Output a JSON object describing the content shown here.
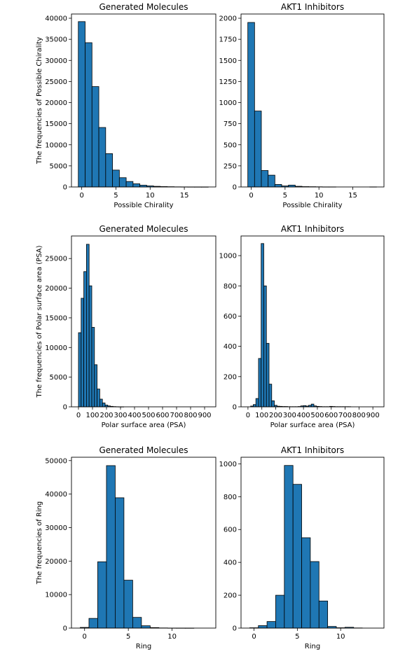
{
  "figure": {
    "bar_color": "#1f77b4",
    "edge_color": "#000000"
  },
  "chart_data": [
    {
      "id": "c1",
      "type": "bar",
      "title": "Generated Molecules",
      "xlabel": "Possible Chirality",
      "ylabel": "The frequencies of Possible Chirality",
      "xlim": [
        -1.5,
        19.6
      ],
      "ylim": [
        0,
        41000
      ],
      "xticks": [
        0,
        5,
        10,
        15
      ],
      "yticks": [
        0,
        5000,
        10000,
        15000,
        20000,
        25000,
        30000,
        35000,
        40000
      ],
      "bin_edges": [
        -0.5,
        0.5,
        1.5,
        2.5,
        3.5,
        4.5,
        5.5,
        6.5,
        7.5,
        8.5,
        9.5,
        10.5,
        11.5,
        12.5,
        13.5,
        14.5,
        15.5,
        16.5,
        17.5,
        18.5
      ],
      "values": [
        39200,
        34200,
        23800,
        14100,
        7900,
        4000,
        2200,
        1300,
        750,
        420,
        250,
        150,
        90,
        60,
        30,
        20,
        10,
        5,
        2
      ]
    },
    {
      "id": "c2",
      "type": "bar",
      "title": "AKT1 Inhibitors",
      "xlabel": "Possible Chirality",
      "ylabel": "",
      "xlim": [
        -1.5,
        19.6
      ],
      "ylim": [
        0,
        2050
      ],
      "xticks": [
        0,
        5,
        10,
        15
      ],
      "yticks": [
        0,
        250,
        500,
        750,
        1000,
        1250,
        1500,
        1750,
        2000
      ],
      "bin_edges": [
        -0.5,
        0.5,
        1.5,
        2.5,
        3.5,
        4.5,
        5.5,
        6.5,
        7.5,
        8.5,
        9.5,
        10.5,
        11.5,
        12.5,
        13.5,
        14.5,
        15.5,
        16.5,
        17.5,
        18.5
      ],
      "values": [
        1950,
        900,
        195,
        140,
        30,
        12,
        22,
        8,
        4,
        3,
        2,
        1,
        1,
        0,
        0,
        0,
        0,
        0,
        1
      ]
    },
    {
      "id": "c3",
      "type": "bar",
      "title": "Generated Molecules",
      "xlabel": "Polar surface area (PSA)",
      "ylabel": "The frequencies of Polar surface area (PSA)",
      "xlim": [
        -50,
        980
      ],
      "ylim": [
        0,
        28800
      ],
      "xticks": [
        0,
        100,
        200,
        300,
        400,
        500,
        600,
        700,
        800,
        900
      ],
      "yticks": [
        0,
        5000,
        10000,
        15000,
        20000,
        25000
      ],
      "bin_edges": [
        0,
        19,
        38,
        57,
        76,
        95,
        114,
        133,
        152,
        171,
        190,
        209,
        228,
        247,
        266,
        285,
        304,
        323
      ],
      "values": [
        12500,
        18300,
        22800,
        27400,
        20400,
        13400,
        7100,
        3000,
        1300,
        650,
        300,
        150,
        80,
        40,
        20,
        10,
        5
      ]
    },
    {
      "id": "c4",
      "type": "bar",
      "title": "AKT1 Inhibitors",
      "xlabel": "Polar surface area (PSA)",
      "ylabel": "",
      "xlim": [
        -50,
        980
      ],
      "ylim": [
        0,
        1130
      ],
      "xticks": [
        0,
        100,
        200,
        300,
        400,
        500,
        600,
        700,
        800,
        900
      ],
      "yticks": [
        0,
        200,
        400,
        600,
        800,
        1000
      ],
      "bin_edges": [
        0,
        19,
        38,
        57,
        76,
        95,
        114,
        133,
        152,
        171,
        190,
        209,
        228,
        247,
        266,
        285,
        304,
        323,
        342,
        361,
        380,
        399,
        418,
        437,
        456,
        475,
        494,
        513,
        532,
        551,
        570,
        589,
        608,
        627,
        646,
        665,
        684,
        703,
        722,
        741
      ],
      "values": [
        0,
        5,
        15,
        55,
        320,
        1080,
        800,
        420,
        150,
        40,
        10,
        4,
        3,
        2,
        2,
        1,
        1,
        1,
        1,
        2,
        6,
        8,
        5,
        10,
        18,
        6,
        3,
        2,
        1,
        1,
        1,
        3,
        2,
        1,
        1,
        1,
        1,
        1,
        1
      ]
    },
    {
      "id": "c5",
      "type": "bar",
      "title": "Generated Molecules",
      "xlabel": "Ring",
      "ylabel": "The frequencies of Ring",
      "xlim": [
        -1.5,
        15
      ],
      "ylim": [
        0,
        51000
      ],
      "xticks": [
        0,
        5,
        10
      ],
      "yticks": [
        0,
        10000,
        20000,
        30000,
        40000,
        50000
      ],
      "bin_edges": [
        -0.5,
        0.5,
        1.5,
        2.5,
        3.5,
        4.5,
        5.5,
        6.5,
        7.5,
        8.5,
        9.5,
        10.5,
        11.5,
        12.5
      ],
      "values": [
        200,
        2900,
        19800,
        48500,
        38900,
        14300,
        3200,
        700,
        150,
        50,
        20,
        10,
        5
      ]
    },
    {
      "id": "c6",
      "type": "bar",
      "title": "AKT1 Inhibitors",
      "xlabel": "Ring",
      "ylabel": "",
      "xlim": [
        -1.5,
        15
      ],
      "ylim": [
        0,
        1040
      ],
      "xticks": [
        0,
        5,
        10
      ],
      "yticks": [
        0,
        200,
        400,
        600,
        800,
        1000
      ],
      "bin_edges": [
        -0.5,
        0.5,
        1.5,
        2.5,
        3.5,
        4.5,
        5.5,
        6.5,
        7.5,
        8.5,
        9.5,
        10.5,
        11.5,
        12.5
      ],
      "values": [
        2,
        15,
        40,
        200,
        990,
        875,
        550,
        405,
        165,
        10,
        2,
        5,
        1
      ]
    }
  ]
}
